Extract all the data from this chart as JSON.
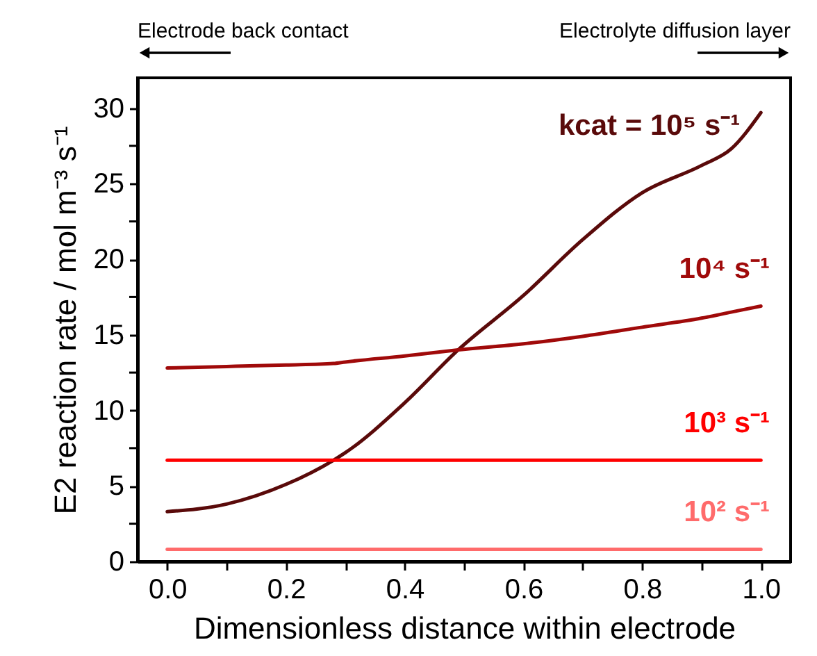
{
  "chart_data": {
    "type": "line",
    "xlabel": "Dimensionless distance within electrode",
    "ylabel": "E2 reaction rate / mol m⁻³ s⁻¹",
    "annotations": [
      "Electrode back contact",
      "Electrolyte diffusion layer"
    ],
    "x": [
      0.0,
      0.1,
      0.2,
      0.28,
      0.3,
      0.4,
      0.49,
      0.6,
      0.7,
      0.8,
      0.9,
      0.95,
      1.0
    ],
    "series": [
      {
        "name": "kcat = 10⁵ s⁻¹",
        "color": "#5a0a0a",
        "values": [
          3.3,
          3.8,
          5.1,
          6.7,
          7.2,
          10.5,
          14.0,
          17.6,
          21.3,
          24.4,
          26.2,
          27.3,
          29.7
        ]
      },
      {
        "name": "10⁴ s⁻¹",
        "color": "#a00a0a",
        "values": [
          12.8,
          12.9,
          13.0,
          13.1,
          13.2,
          13.6,
          14.0,
          14.4,
          14.9,
          15.5,
          16.1,
          16.5,
          16.9
        ]
      },
      {
        "name": "10³ s⁻¹",
        "color": "#ff0000",
        "values": [
          6.7,
          6.7,
          6.7,
          6.7,
          6.7,
          6.7,
          6.7,
          6.7,
          6.7,
          6.7,
          6.7,
          6.7,
          6.7
        ]
      },
      {
        "name": "10² s⁻¹",
        "color": "#ff6b6b",
        "values": [
          0.8,
          0.8,
          0.8,
          0.8,
          0.8,
          0.8,
          0.8,
          0.8,
          0.8,
          0.8,
          0.8,
          0.8,
          0.8
        ]
      }
    ],
    "xlim": [
      -0.05,
      1.05
    ],
    "ylim": [
      0,
      32
    ],
    "xticks": [
      {
        "value": 0,
        "label": "0.0"
      },
      {
        "value": 0.1,
        "label": null
      },
      0.2,
      {
        "value": 0.3,
        "label": null
      },
      0.4,
      {
        "value": 0.5,
        "label": null
      },
      0.6,
      {
        "value": 0.7,
        "label": null
      },
      0.8,
      {
        "value": 0.9,
        "label": null
      },
      {
        "value": 1,
        "label": "1.0"
      }
    ],
    "yticks": [
      0,
      {
        "value": 2.5,
        "label": null
      },
      5,
      {
        "value": 7.5,
        "label": null
      },
      10,
      {
        "value": 12.5,
        "label": null
      },
      15,
      {
        "value": 17.5,
        "label": null
      },
      20,
      {
        "value": 22.5,
        "label": null
      },
      25,
      {
        "value": 27.5,
        "label": null
      },
      30
    ],
    "grid": false,
    "legend": false,
    "marker": "none",
    "line_style": "solid"
  }
}
